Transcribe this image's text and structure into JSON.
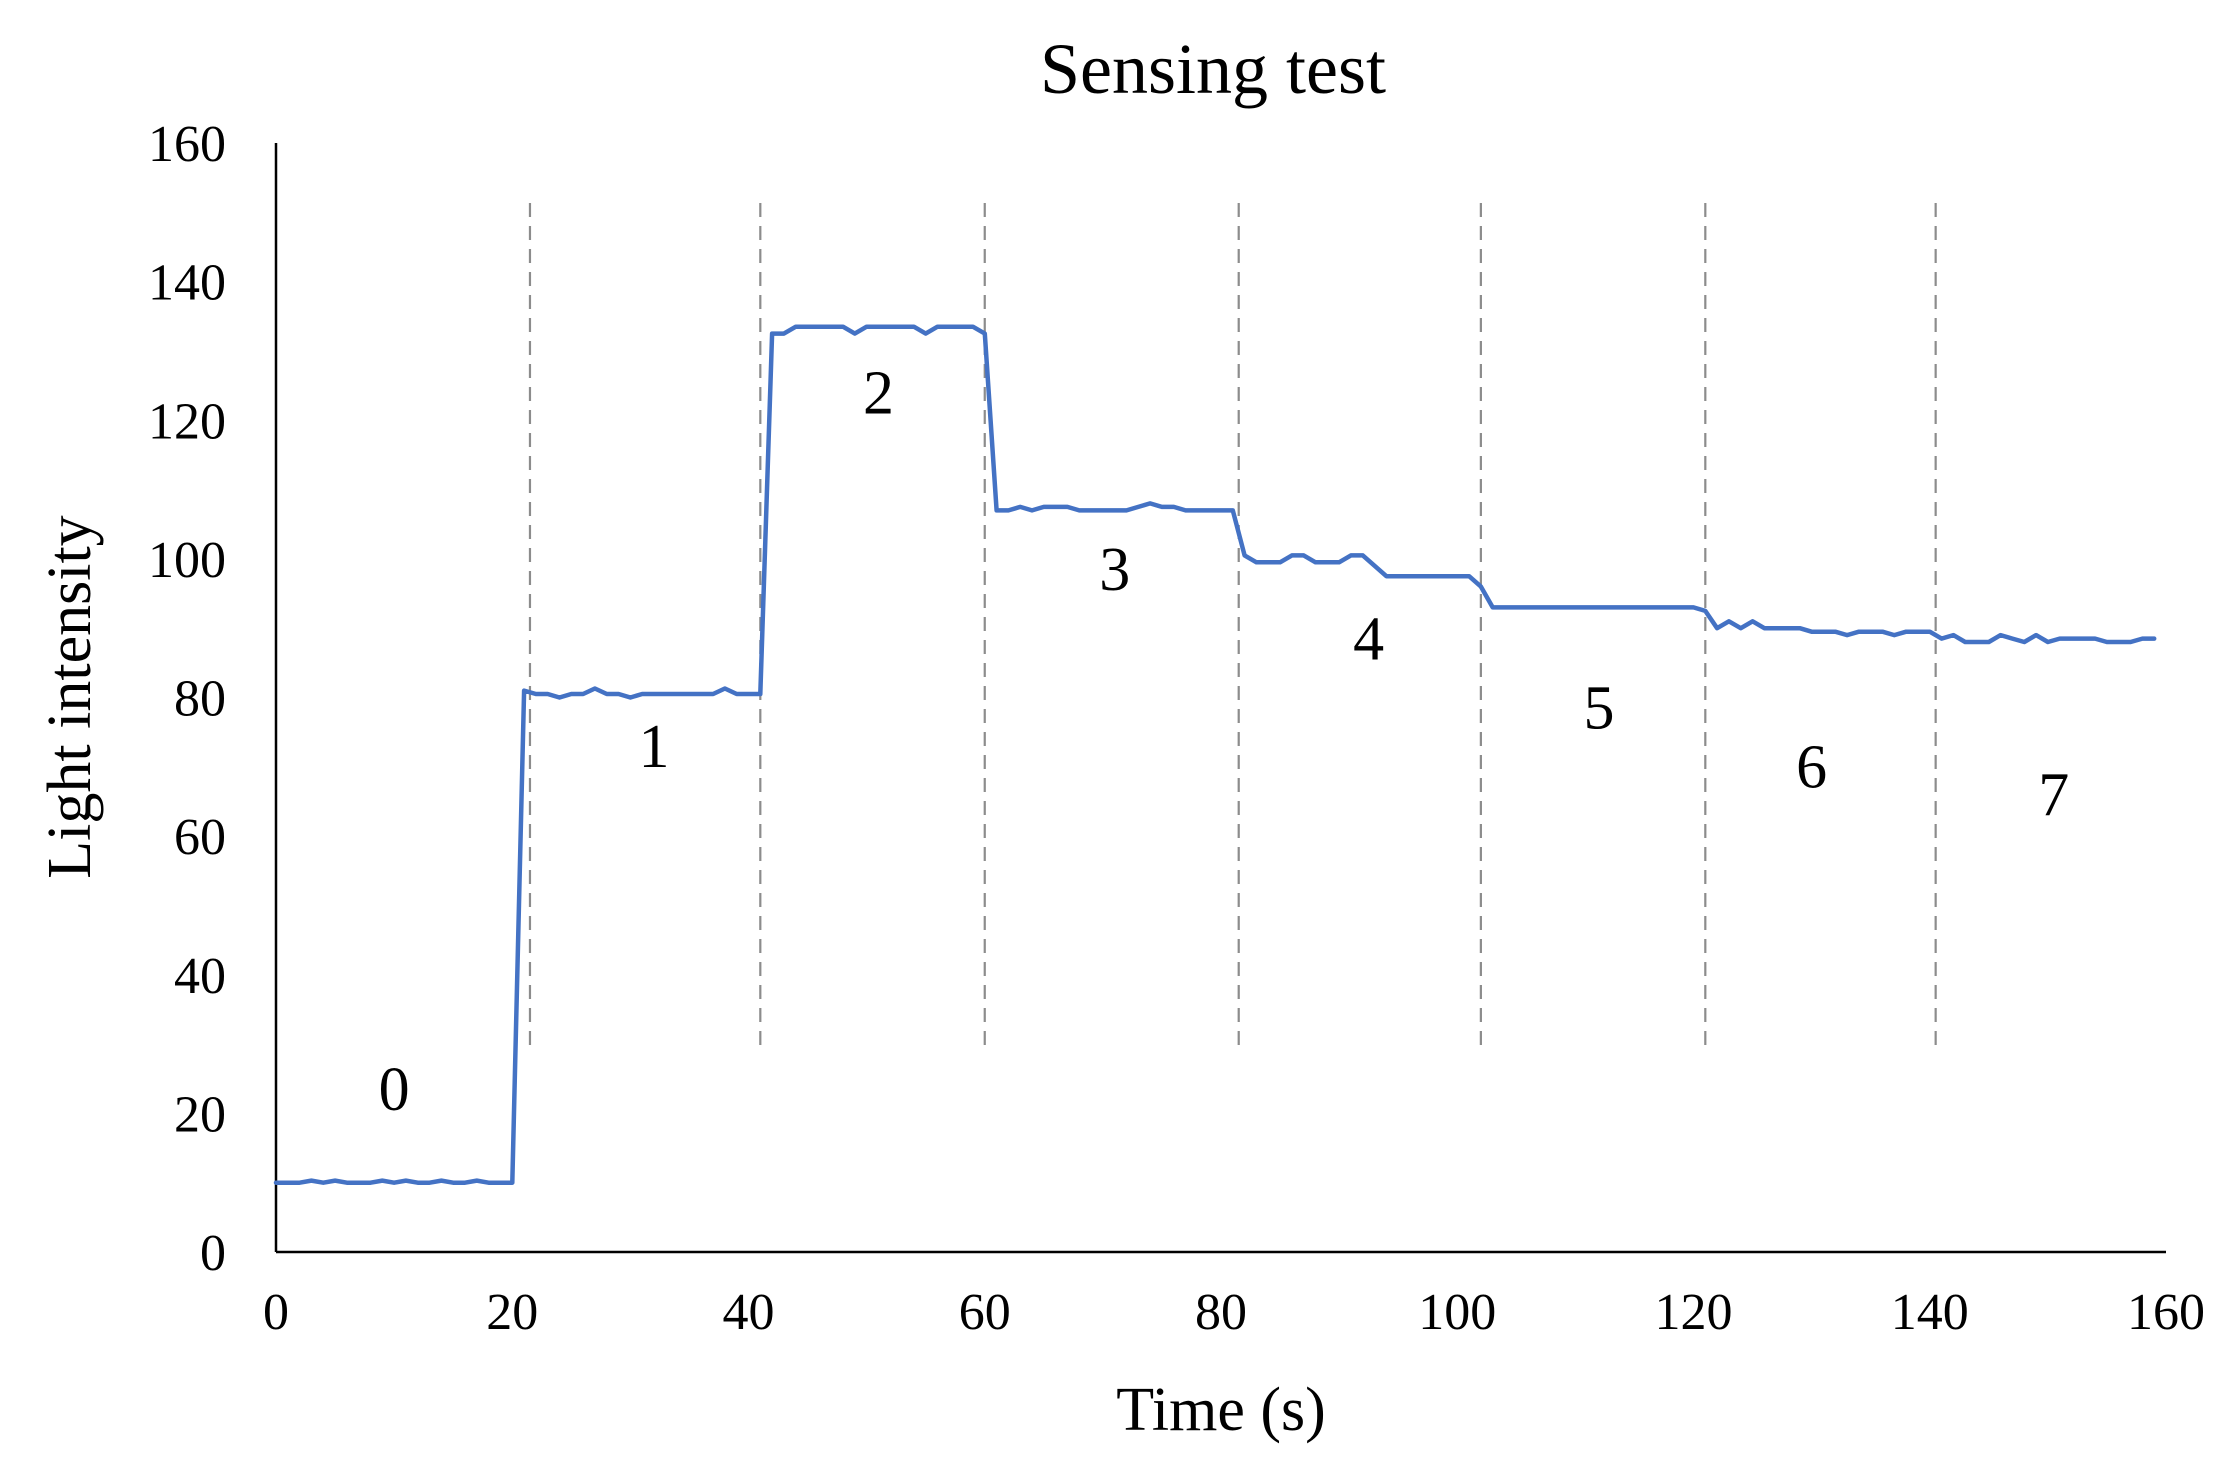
{
  "chart_data": {
    "type": "line",
    "title": "Sensing test",
    "xlabel": "Time (s)",
    "ylabel": "Light intensity",
    "xlim": [
      0,
      160
    ],
    "ylim": [
      0,
      160
    ],
    "x_ticks": [
      "0",
      "20",
      "40",
      "60",
      "80",
      "100",
      "120",
      "140",
      "160"
    ],
    "y_ticks": [
      "0",
      "20",
      "40",
      "60",
      "80",
      "100",
      "120",
      "140",
      "160"
    ],
    "grid": false,
    "line_color": "#4472C4",
    "divider_color": "#8c8c8c",
    "stage_dividers": [
      21.5,
      41,
      60,
      81.5,
      102,
      121,
      140.5
    ],
    "stage_labels": [
      {
        "text": "0",
        "x": 10,
        "y": 20.5
      },
      {
        "text": "1",
        "x": 32,
        "y": 70
      },
      {
        "text": "2",
        "x": 51,
        "y": 121
      },
      {
        "text": "3",
        "x": 71,
        "y": 95.5
      },
      {
        "text": "4",
        "x": 92.5,
        "y": 85.5
      },
      {
        "text": "5",
        "x": 112,
        "y": 75.5
      },
      {
        "text": "6",
        "x": 130,
        "y": 67
      },
      {
        "text": "7",
        "x": 150.5,
        "y": 63
      }
    ],
    "series": [
      {
        "values": [
          [
            0,
            10
          ],
          [
            1,
            10
          ],
          [
            2,
            10
          ],
          [
            3,
            10.3
          ],
          [
            4,
            10
          ],
          [
            5,
            10.3
          ],
          [
            6,
            10
          ],
          [
            7,
            10
          ],
          [
            8,
            10
          ],
          [
            9,
            10.3
          ],
          [
            10,
            10
          ],
          [
            11,
            10.3
          ],
          [
            12,
            10
          ],
          [
            13,
            10
          ],
          [
            14,
            10.3
          ],
          [
            15,
            10
          ],
          [
            16,
            10
          ],
          [
            17,
            10.3
          ],
          [
            18,
            10
          ],
          [
            19,
            10
          ],
          [
            20,
            10
          ],
          [
            21,
            81
          ],
          [
            22,
            80.5
          ],
          [
            23,
            80.5
          ],
          [
            24,
            80
          ],
          [
            25,
            80.5
          ],
          [
            26,
            80.5
          ],
          [
            27,
            81.3
          ],
          [
            28,
            80.5
          ],
          [
            29,
            80.5
          ],
          [
            30,
            80
          ],
          [
            31,
            80.5
          ],
          [
            32,
            80.5
          ],
          [
            33,
            80.5
          ],
          [
            34,
            80.5
          ],
          [
            35,
            80.5
          ],
          [
            36,
            80.5
          ],
          [
            37,
            80.5
          ],
          [
            38,
            81.3
          ],
          [
            39,
            80.5
          ],
          [
            40,
            80.5
          ],
          [
            41,
            80.5
          ],
          [
            42,
            132.5
          ],
          [
            43,
            132.5
          ],
          [
            44,
            133.5
          ],
          [
            45,
            133.5
          ],
          [
            46,
            133.5
          ],
          [
            47,
            133.5
          ],
          [
            48,
            133.5
          ],
          [
            49,
            132.5
          ],
          [
            50,
            133.5
          ],
          [
            51,
            133.5
          ],
          [
            52,
            133.5
          ],
          [
            53,
            133.5
          ],
          [
            54,
            133.5
          ],
          [
            55,
            132.5
          ],
          [
            56,
            133.5
          ],
          [
            57,
            133.5
          ],
          [
            58,
            133.5
          ],
          [
            59,
            133.5
          ],
          [
            60,
            132.5
          ],
          [
            61,
            107
          ],
          [
            62,
            107
          ],
          [
            63,
            107.5
          ],
          [
            64,
            107
          ],
          [
            65,
            107.5
          ],
          [
            66,
            107.5
          ],
          [
            67,
            107.5
          ],
          [
            68,
            107
          ],
          [
            69,
            107
          ],
          [
            70,
            107
          ],
          [
            71,
            107
          ],
          [
            72,
            107
          ],
          [
            73,
            107.5
          ],
          [
            74,
            108
          ],
          [
            75,
            107.5
          ],
          [
            76,
            107.5
          ],
          [
            77,
            107
          ],
          [
            78,
            107
          ],
          [
            79,
            107
          ],
          [
            80,
            107
          ],
          [
            81,
            107
          ],
          [
            82,
            100.5
          ],
          [
            83,
            99.5
          ],
          [
            84,
            99.5
          ],
          [
            85,
            99.5
          ],
          [
            86,
            100.5
          ],
          [
            87,
            100.5
          ],
          [
            88,
            99.5
          ],
          [
            89,
            99.5
          ],
          [
            90,
            99.5
          ],
          [
            91,
            100.5
          ],
          [
            92,
            100.5
          ],
          [
            93,
            99
          ],
          [
            94,
            97.5
          ],
          [
            95,
            97.5
          ],
          [
            96,
            97.5
          ],
          [
            97,
            97.5
          ],
          [
            98,
            97.5
          ],
          [
            99,
            97.5
          ],
          [
            100,
            97.5
          ],
          [
            101,
            97.5
          ],
          [
            102,
            96
          ],
          [
            103,
            93
          ],
          [
            104,
            93
          ],
          [
            105,
            93
          ],
          [
            106,
            93
          ],
          [
            107,
            93
          ],
          [
            108,
            93
          ],
          [
            109,
            93
          ],
          [
            110,
            93
          ],
          [
            111,
            93
          ],
          [
            112,
            93
          ],
          [
            113,
            93
          ],
          [
            114,
            93
          ],
          [
            115,
            93
          ],
          [
            116,
            93
          ],
          [
            117,
            93
          ],
          [
            118,
            93
          ],
          [
            119,
            93
          ],
          [
            120,
            93
          ],
          [
            121,
            92.5
          ],
          [
            122,
            90
          ],
          [
            123,
            91
          ],
          [
            124,
            90
          ],
          [
            125,
            91
          ],
          [
            126,
            90
          ],
          [
            127,
            90
          ],
          [
            128,
            90
          ],
          [
            129,
            90
          ],
          [
            130,
            89.5
          ],
          [
            131,
            89.5
          ],
          [
            132,
            89.5
          ],
          [
            133,
            89
          ],
          [
            134,
            89.5
          ],
          [
            135,
            89.5
          ],
          [
            136,
            89.5
          ],
          [
            137,
            89
          ],
          [
            138,
            89.5
          ],
          [
            139,
            89.5
          ],
          [
            140,
            89.5
          ],
          [
            141,
            88.5
          ],
          [
            142,
            89
          ],
          [
            143,
            88
          ],
          [
            144,
            88
          ],
          [
            145,
            88
          ],
          [
            146,
            89
          ],
          [
            147,
            88.5
          ],
          [
            148,
            88
          ],
          [
            149,
            89
          ],
          [
            150,
            88
          ],
          [
            151,
            88.5
          ],
          [
            152,
            88.5
          ],
          [
            153,
            88.5
          ],
          [
            154,
            88.5
          ],
          [
            155,
            88
          ],
          [
            156,
            88
          ],
          [
            157,
            88
          ],
          [
            158,
            88.5
          ],
          [
            159,
            88.5
          ]
        ]
      }
    ]
  }
}
